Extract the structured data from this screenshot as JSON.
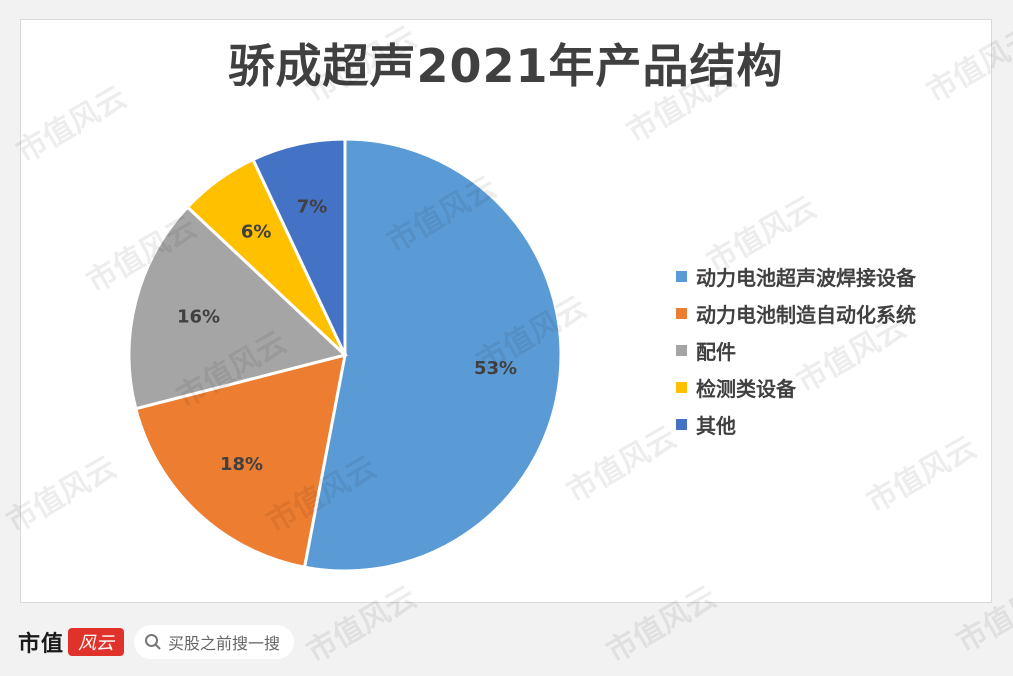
{
  "chart_data": {
    "type": "pie",
    "title": "骄成超声2021年产品结构",
    "categories": [
      "动力电池超声波焊接设备",
      "动力电池制造自动化系统",
      "配件",
      "检测类设备",
      "其他"
    ],
    "values": [
      53,
      18,
      16,
      6,
      7
    ],
    "labels": [
      "53%",
      "18%",
      "16%",
      "6%",
      "7%"
    ],
    "colors": [
      "#5b9bd5",
      "#ed7d31",
      "#a5a5a5",
      "#ffc000",
      "#4472c4"
    ],
    "legend_position": "right"
  },
  "footer": {
    "brand": "市值",
    "brand_mark": "风云",
    "search_placeholder": "买股之前搜一搜"
  },
  "watermark": "市值风云"
}
